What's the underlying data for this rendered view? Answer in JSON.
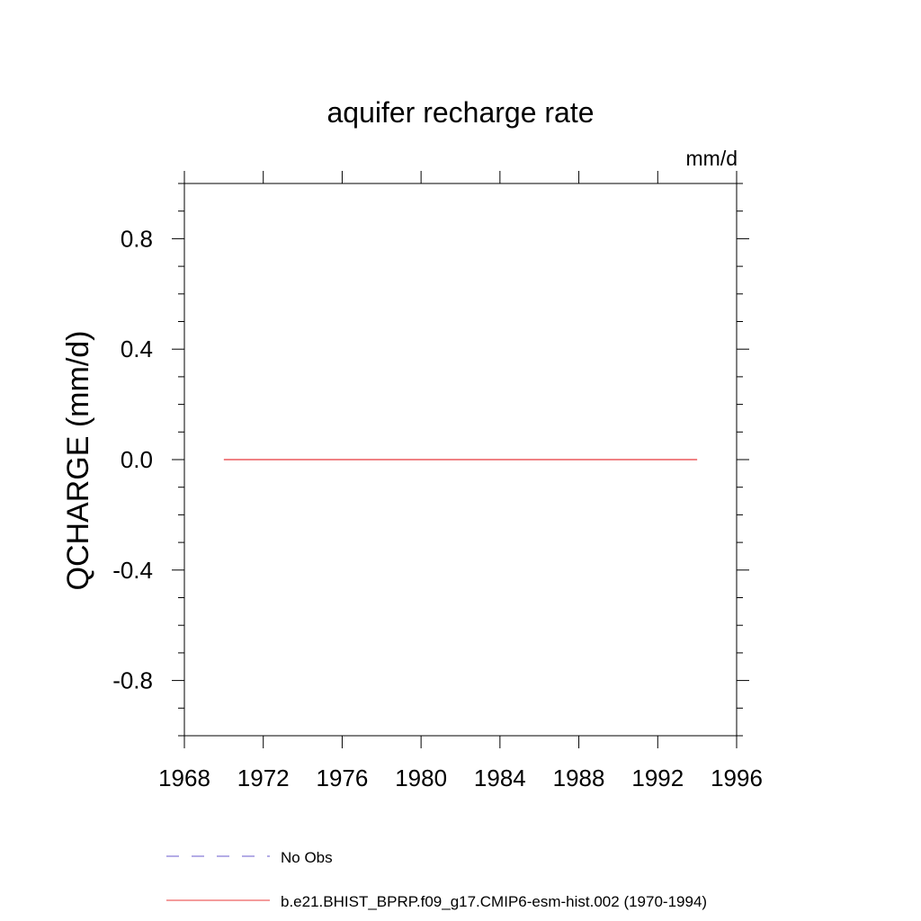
{
  "chart_data": {
    "type": "line",
    "title": "aquifer recharge rate",
    "units": "mm/d",
    "ylabel": "QCHARGE  (mm/d)",
    "xlabel": "",
    "xlim": [
      1968,
      1996
    ],
    "ylim": [
      -1.0,
      1.0
    ],
    "xticks": [
      1968,
      1972,
      1976,
      1980,
      1984,
      1988,
      1992,
      1996
    ],
    "yticks": [
      -0.8,
      -0.4,
      0.0,
      0.4,
      0.8
    ],
    "ytick_labels": [
      "-0.8",
      "-0.4",
      "0.0",
      "0.4",
      "0.8"
    ],
    "grid": false,
    "legend_position": "bottom",
    "series": [
      {
        "name": "No Obs",
        "color": "#6a5acd",
        "dash": "dashed",
        "x": [],
        "y": []
      },
      {
        "name": "b.e21.BHIST_BPRP.f09_g17.CMIP6-esm-hist.002 (1970-1994)",
        "color": "#e8383a",
        "dash": "solid",
        "x": [
          1970,
          1971,
          1972,
          1973,
          1974,
          1975,
          1976,
          1977,
          1978,
          1979,
          1980,
          1981,
          1982,
          1983,
          1984,
          1985,
          1986,
          1987,
          1988,
          1989,
          1990,
          1991,
          1992,
          1993,
          1994
        ],
        "y": [
          0,
          0,
          0,
          0,
          0,
          0,
          0,
          0,
          0,
          0,
          0,
          0,
          0,
          0,
          0,
          0,
          0,
          0,
          0,
          0,
          0,
          0,
          0,
          0,
          0
        ]
      }
    ]
  }
}
